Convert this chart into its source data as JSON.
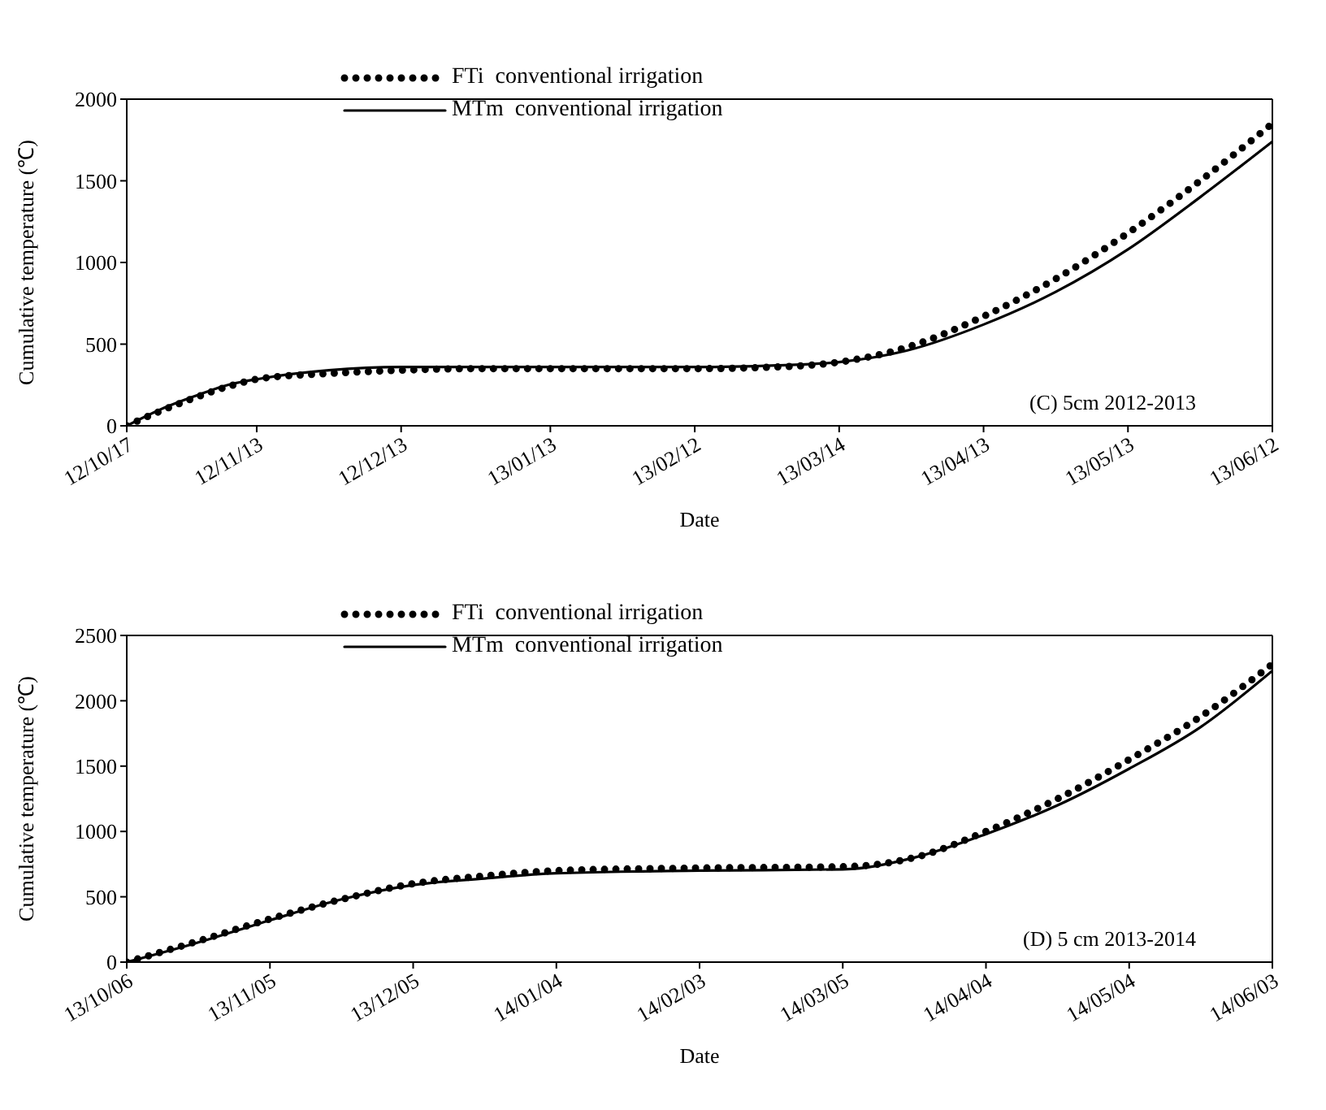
{
  "chart_data": [
    {
      "type": "line",
      "xlabel": "Date",
      "ylabel": "Cumulative temperature (℃)",
      "annotations": [
        "(C) 5cm 2012-2013"
      ],
      "xlim": [
        "2012-10-17",
        "2013-06-12"
      ],
      "xticks": [
        {
          "value": "2012-10-17",
          "label": "12/10/17"
        },
        {
          "value": "2012-11-13",
          "label": "12/11/13"
        },
        {
          "value": "2012-12-13",
          "label": "12/12/13"
        },
        {
          "value": "2013-01-13",
          "label": "13/01/13"
        },
        {
          "value": "2013-02-12",
          "label": "13/02/12"
        },
        {
          "value": "2013-03-14",
          "label": "13/03/14"
        },
        {
          "value": "2013-04-13",
          "label": "13/04/13"
        },
        {
          "value": "2013-05-13",
          "label": "13/05/13"
        },
        {
          "value": "2013-06-12",
          "label": "13/06/12"
        }
      ],
      "ylim": [
        0,
        2000
      ],
      "yticks": [
        0,
        500,
        1000,
        1500,
        2000
      ],
      "legend": "top left",
      "marker": "none",
      "series": [
        {
          "name": "FTi  conventional irrigation",
          "color": "#000000",
          "line_style": "dotted",
          "x": [
            "2012-10-17",
            "2012-10-24",
            "2012-10-31",
            "2012-11-07",
            "2012-11-14",
            "2012-11-28",
            "2012-12-13",
            "2012-12-28",
            "2013-01-13",
            "2013-02-12",
            "2013-03-01",
            "2013-03-14",
            "2013-03-28",
            "2013-04-13",
            "2013-04-28",
            "2013-05-13",
            "2013-05-28",
            "2013-06-12"
          ],
          "values": [
            0,
            90,
            170,
            240,
            290,
            320,
            340,
            350,
            350,
            350,
            360,
            390,
            480,
            670,
            900,
            1180,
            1500,
            1850
          ]
        },
        {
          "name": "MTm  conventional irrigation",
          "color": "#000000",
          "line_style": "solid",
          "x": [
            "2012-10-17",
            "2012-10-24",
            "2012-10-31",
            "2012-11-07",
            "2012-11-14",
            "2012-11-28",
            "2012-12-13",
            "2012-12-28",
            "2013-01-13",
            "2013-02-12",
            "2013-03-01",
            "2013-03-14",
            "2013-03-28",
            "2013-04-13",
            "2013-04-28",
            "2013-05-13",
            "2013-05-28",
            "2013-06-12"
          ],
          "values": [
            0,
            100,
            180,
            250,
            290,
            340,
            360,
            360,
            360,
            360,
            370,
            390,
            460,
            620,
            820,
            1080,
            1400,
            1740
          ]
        }
      ]
    },
    {
      "type": "line",
      "xlabel": "Date",
      "ylabel": "Cumulative temperature (℃)",
      "annotations": [
        "(D) 5 cm 2013-2014"
      ],
      "xlim": [
        "2013-10-06",
        "2014-06-03"
      ],
      "xticks": [
        {
          "value": "2013-10-06",
          "label": "13/10/06"
        },
        {
          "value": "2013-11-05",
          "label": "13/11/05"
        },
        {
          "value": "2013-12-05",
          "label": "13/12/05"
        },
        {
          "value": "2014-01-04",
          "label": "14/01/04"
        },
        {
          "value": "2014-02-03",
          "label": "14/02/03"
        },
        {
          "value": "2014-03-05",
          "label": "14/03/05"
        },
        {
          "value": "2014-04-04",
          "label": "14/04/04"
        },
        {
          "value": "2014-05-04",
          "label": "14/05/04"
        },
        {
          "value": "2014-06-03",
          "label": "14/06/03"
        }
      ],
      "ylim": [
        0,
        2500
      ],
      "yticks": [
        0,
        500,
        1000,
        1500,
        2000,
        2500
      ],
      "legend": "top left",
      "marker": "none",
      "series": [
        {
          "name": "FTi  conventional irrigation",
          "color": "#000000",
          "line_style": "dotted",
          "x": [
            "2013-10-06",
            "2013-10-20",
            "2013-11-05",
            "2013-11-20",
            "2013-12-05",
            "2013-12-20",
            "2014-01-04",
            "2014-02-03",
            "2014-03-05",
            "2014-03-20",
            "2014-04-04",
            "2014-04-19",
            "2014-05-04",
            "2014-05-19",
            "2014-06-03"
          ],
          "values": [
            0,
            150,
            330,
            480,
            600,
            660,
            700,
            720,
            730,
            800,
            1000,
            1250,
            1550,
            1880,
            2280
          ]
        },
        {
          "name": "MTm  conventional irrigation",
          "color": "#000000",
          "line_style": "solid",
          "x": [
            "2013-10-06",
            "2013-10-20",
            "2013-11-05",
            "2013-11-20",
            "2013-12-05",
            "2013-12-20",
            "2014-01-04",
            "2014-02-03",
            "2014-03-05",
            "2014-03-20",
            "2014-04-04",
            "2014-04-19",
            "2014-05-04",
            "2014-05-19",
            "2014-06-03"
          ],
          "values": [
            0,
            140,
            320,
            480,
            590,
            640,
            680,
            700,
            710,
            800,
            980,
            1200,
            1480,
            1800,
            2230
          ]
        }
      ]
    }
  ]
}
